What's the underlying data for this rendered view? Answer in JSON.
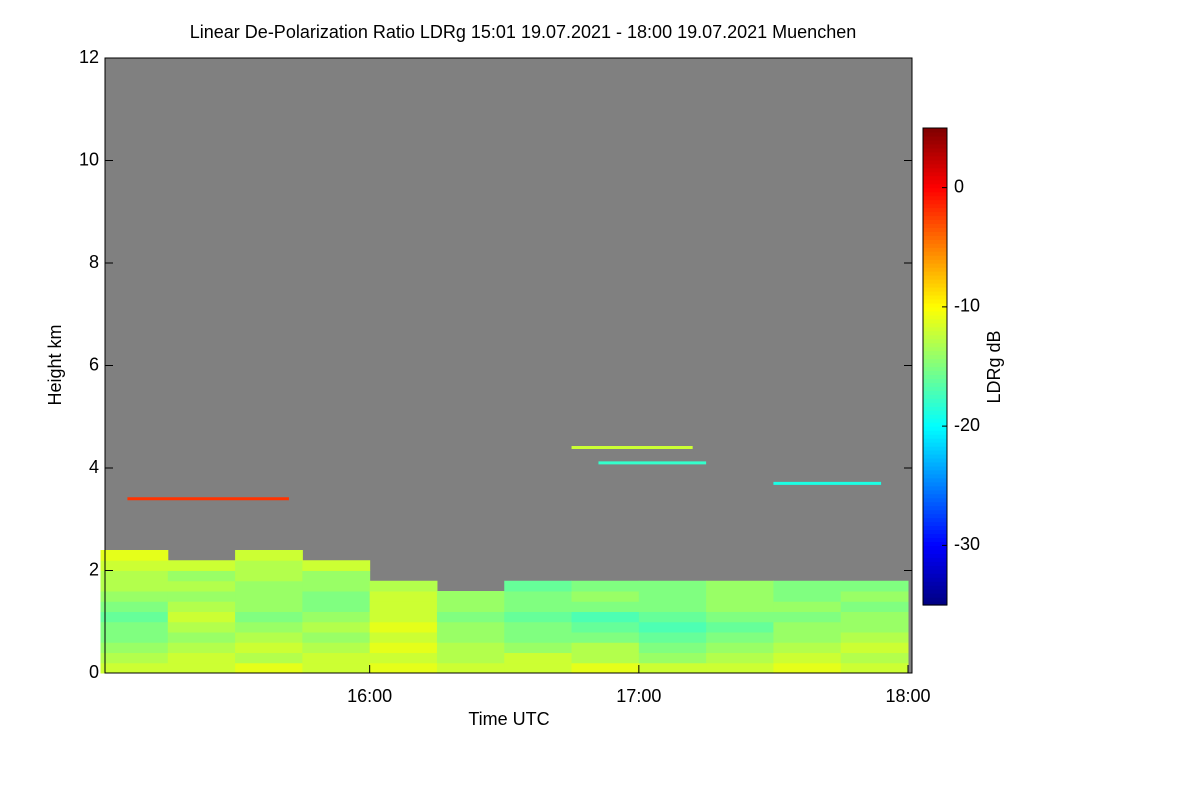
{
  "chart_data": {
    "type": "heatmap",
    "title": "Linear De-Polarization Ratio LDRg   15:01 19.07.2021 - 18:00 19.07.2021 Muenchen",
    "x_label": "Time UTC",
    "y_label": "Height km",
    "colorbar_label": "LDRg dB",
    "colormap": "jet",
    "nodata_color": "#808080",
    "xlim": [
      15.0167,
      18.0
    ],
    "xticks": [
      {
        "value": 16,
        "label": "16:00"
      },
      {
        "value": 17,
        "label": "17:00"
      },
      {
        "value": 18,
        "label": "18:00"
      }
    ],
    "ylim": [
      0,
      12
    ],
    "yticks": [
      0,
      2,
      4,
      6,
      8,
      10,
      12
    ],
    "zlim": [
      -35,
      5
    ],
    "zticks": [
      0,
      -10,
      -20,
      -30
    ],
    "x": [
      15.125,
      15.375,
      15.625,
      15.875,
      16.125,
      16.375,
      16.625,
      16.875,
      17.125,
      17.375,
      17.625,
      17.875
    ],
    "y": [
      0.1,
      0.3,
      0.5,
      0.7,
      0.9,
      1.1,
      1.3,
      1.5,
      1.7,
      1.9,
      2.1,
      2.3
    ],
    "z": [
      [
        -12,
        -12,
        -11,
        -12,
        -11,
        -12,
        -12,
        -11,
        -12,
        -12,
        -11,
        -12
      ],
      [
        -13,
        -12,
        -13,
        -12,
        -12,
        -13,
        -12,
        -13,
        -14,
        -13,
        -12,
        -13
      ],
      [
        -14,
        -13,
        -12,
        -13,
        -11,
        -13,
        -14,
        -13,
        -15,
        -14,
        -13,
        -12
      ],
      [
        -15,
        -14,
        -13,
        -14,
        -12,
        -14,
        -15,
        -15,
        -16,
        -15,
        -14,
        -13
      ],
      [
        -15,
        -13,
        -14,
        -13,
        -11,
        -14,
        -15,
        -16,
        -17,
        -16,
        -14,
        -14
      ],
      [
        -16,
        -12,
        -15,
        -14,
        -12,
        -15,
        -16,
        -17,
        -16,
        -15,
        -15,
        -14
      ],
      [
        -15,
        -13,
        -14,
        -15,
        -12,
        -14,
        -15,
        -15,
        -15,
        -14,
        -14,
        -15
      ],
      [
        -14,
        -14,
        -14,
        -15,
        -12,
        -14,
        -15,
        -14,
        -15,
        -14,
        -15,
        -14
      ],
      [
        -13,
        -13,
        -14,
        -14,
        -13,
        null,
        -16,
        -15,
        -15,
        -14,
        -15,
        -15
      ],
      [
        -13,
        -14,
        -13,
        -14,
        null,
        null,
        null,
        null,
        null,
        null,
        null,
        null
      ],
      [
        -12,
        -12,
        -13,
        -12,
        null,
        null,
        null,
        null,
        null,
        null,
        null,
        null
      ],
      [
        -11,
        null,
        -12,
        null,
        null,
        null,
        null,
        null,
        null,
        null,
        null,
        null
      ]
    ],
    "layers": [
      {
        "x": [
          15.1,
          15.7
        ],
        "y": 3.4,
        "value": -2
      },
      {
        "x": [
          16.75,
          17.2
        ],
        "y": 4.4,
        "value": -12
      },
      {
        "x": [
          16.85,
          17.25
        ],
        "y": 4.1,
        "value": -18
      },
      {
        "x": [
          17.5,
          17.9
        ],
        "y": 3.7,
        "value": -19
      }
    ]
  }
}
